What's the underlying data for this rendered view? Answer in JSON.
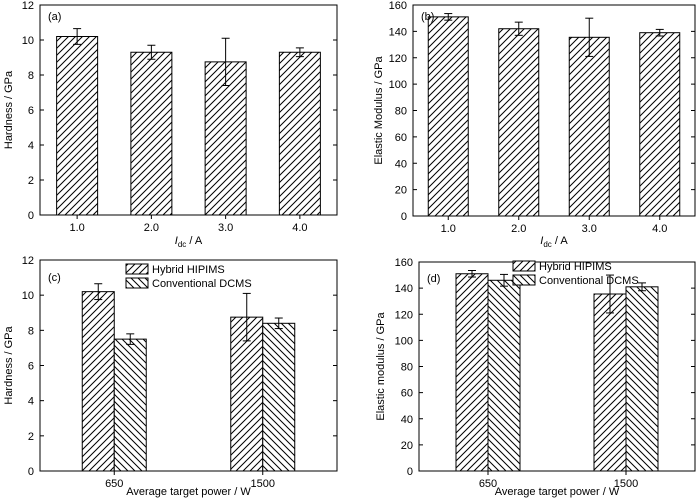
{
  "chart_data": [
    {
      "panel": "(a)",
      "type": "bar",
      "categories": [
        "1.0",
        "2.0",
        "3.0",
        "4.0"
      ],
      "series": [
        {
          "values": [
            10.2,
            9.3,
            8.75,
            9.3
          ],
          "errors": [
            0.45,
            0.4,
            1.35,
            0.25
          ],
          "pattern": "hatch-forward"
        }
      ],
      "ylabel": "Hardness / GPa",
      "xlabel_main": "I",
      "xlabel_sub": "dc",
      "xlabel_unit": " / A",
      "ylim": [
        0,
        12
      ],
      "yticks": [
        0,
        2,
        4,
        6,
        8,
        10,
        12
      ],
      "legend": []
    },
    {
      "panel": "(b)",
      "type": "bar",
      "categories": [
        "1.0",
        "2.0",
        "3.0",
        "4.0"
      ],
      "series": [
        {
          "values": [
            151,
            142,
            135.5,
            139
          ],
          "errors": [
            2.5,
            5,
            14.5,
            2.5
          ],
          "pattern": "hatch-forward"
        }
      ],
      "ylabel": "Elastic Modulus / GPa",
      "xlabel_main": "I",
      "xlabel_sub": "dc",
      "xlabel_unit": " / A",
      "ylim": [
        0,
        160
      ],
      "yticks": [
        0,
        20,
        40,
        60,
        80,
        100,
        120,
        140,
        160
      ],
      "legend": []
    },
    {
      "panel": "(c)",
      "type": "bar",
      "categories": [
        "650",
        "1500"
      ],
      "series": [
        {
          "name": "Hybrid HIPIMS",
          "values": [
            10.2,
            8.75
          ],
          "errors": [
            0.45,
            1.35
          ],
          "pattern": "hatch-forward"
        },
        {
          "name": "Conventional DCMS",
          "values": [
            7.5,
            8.4
          ],
          "errors": [
            0.3,
            0.3
          ],
          "pattern": "hatch-back"
        }
      ],
      "ylabel": "Hardness / GPa",
      "xlabel_main": "Average target power / W",
      "xlabel_sub": "",
      "xlabel_unit": "",
      "ylim": [
        0,
        12
      ],
      "yticks": [
        0,
        2,
        4,
        6,
        8,
        10,
        12
      ],
      "legend": [
        "Hybrid HIPIMS",
        "Conventional DCMS"
      ]
    },
    {
      "panel": "(d)",
      "type": "bar",
      "categories": [
        "650",
        "1500"
      ],
      "series": [
        {
          "name": "Hybrid HIPIMS",
          "values": [
            151,
            135.5
          ],
          "errors": [
            2.5,
            14.5
          ],
          "pattern": "hatch-forward"
        },
        {
          "name": "Conventional DCMS",
          "values": [
            146,
            141
          ],
          "errors": [
            4.5,
            3
          ],
          "pattern": "hatch-back"
        }
      ],
      "ylabel": "Elastic modulus / GPa",
      "xlabel_main": "Average target power / W",
      "xlabel_sub": "",
      "xlabel_unit": "",
      "ylim": [
        0,
        160
      ],
      "yticks": [
        0,
        20,
        40,
        60,
        80,
        100,
        120,
        140,
        160
      ],
      "legend": [
        "Hybrid HIPIMS",
        "Conventional DCMS"
      ]
    }
  ]
}
